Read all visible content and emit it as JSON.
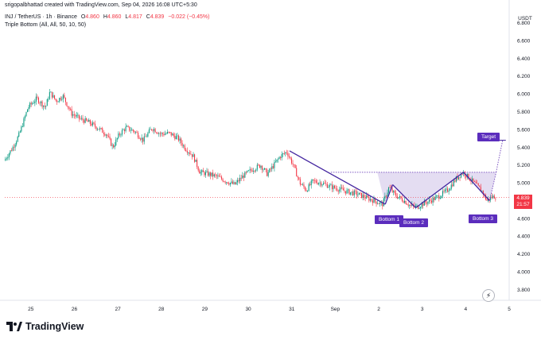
{
  "header": {
    "creator": "srigopalbhattad created with TradingView.com, Sep 04, 2026 16:08 UTC+5:30",
    "symbol": "INJ / TetherUS · 1h · Binance",
    "o_label": "O",
    "o_val": "4.860",
    "h_label": "H",
    "h_val": "4.860",
    "l_label": "L",
    "l_val": "4.817",
    "c_label": "C",
    "c_val": "4.839",
    "change": "−0.022 (−0.45%)",
    "indicator": "Triple Bottom (All, All, 50, 10, 50)"
  },
  "price_axis": {
    "currency": "USDT"
  },
  "last_price": {
    "value": "4.839",
    "countdown": "21:57"
  },
  "labels": {
    "bottom1": "Bottom 1",
    "bottom2": "Bottom 2",
    "bottom3": "Bottom 3",
    "target": "Target"
  },
  "brand": {
    "name": "TradingView"
  },
  "chart_data": {
    "type": "candlestick",
    "y_ticks": [
      "6.800",
      "6.600",
      "6.400",
      "6.200",
      "6.000",
      "5.800",
      "5.600",
      "5.400",
      "5.200",
      "5.000",
      "4.800",
      "4.600",
      "4.400",
      "4.200",
      "4.000",
      "3.800"
    ],
    "ylim": [
      3.68,
      6.95
    ],
    "x_ticks": [
      {
        "label": "25",
        "t": 0.6
      },
      {
        "label": "26",
        "t": 1.6
      },
      {
        "label": "27",
        "t": 2.6
      },
      {
        "label": "28",
        "t": 3.6
      },
      {
        "label": "29",
        "t": 4.6
      },
      {
        "label": "30",
        "t": 5.6
      },
      {
        "label": "31",
        "t": 6.6
      },
      {
        "label": "Sep",
        "t": 7.6
      },
      {
        "label": "2",
        "t": 8.6
      },
      {
        "label": "3",
        "t": 9.6
      },
      {
        "label": "4",
        "t": 10.6
      },
      {
        "label": "5",
        "t": 11.6
      }
    ],
    "xlim": [
      0,
      11.6
    ],
    "anchors": [
      [
        0.0,
        5.25
      ],
      [
        0.2,
        5.4
      ],
      [
        0.35,
        5.55
      ],
      [
        0.55,
        5.85
      ],
      [
        0.75,
        5.95
      ],
      [
        0.95,
        5.85
      ],
      [
        1.05,
        6.02
      ],
      [
        1.2,
        5.92
      ],
      [
        1.35,
        5.98
      ],
      [
        1.55,
        5.78
      ],
      [
        1.75,
        5.72
      ],
      [
        1.95,
        5.68
      ],
      [
        2.15,
        5.62
      ],
      [
        2.35,
        5.55
      ],
      [
        2.5,
        5.4
      ],
      [
        2.65,
        5.55
      ],
      [
        2.8,
        5.62
      ],
      [
        3.0,
        5.58
      ],
      [
        3.2,
        5.48
      ],
      [
        3.4,
        5.62
      ],
      [
        3.6,
        5.55
      ],
      [
        3.8,
        5.56
      ],
      [
        4.0,
        5.5
      ],
      [
        4.15,
        5.4
      ],
      [
        4.35,
        5.3
      ],
      [
        4.5,
        5.12
      ],
      [
        4.7,
        5.1
      ],
      [
        4.9,
        5.07
      ],
      [
        5.1,
        5.02
      ],
      [
        5.3,
        4.98
      ],
      [
        5.5,
        5.08
      ],
      [
        5.7,
        5.15
      ],
      [
        5.9,
        5.2
      ],
      [
        6.05,
        5.1
      ],
      [
        6.2,
        5.2
      ],
      [
        6.35,
        5.3
      ],
      [
        6.5,
        5.35
      ],
      [
        6.65,
        5.2
      ],
      [
        6.8,
        5.0
      ],
      [
        6.95,
        4.92
      ],
      [
        7.1,
        5.02
      ],
      [
        7.3,
        5.0
      ],
      [
        7.5,
        4.96
      ],
      [
        7.7,
        4.93
      ],
      [
        7.9,
        4.9
      ],
      [
        8.1,
        4.88
      ],
      [
        8.3,
        4.84
      ],
      [
        8.5,
        4.8
      ],
      [
        8.7,
        4.76
      ],
      [
        8.85,
        4.95
      ],
      [
        9.0,
        4.86
      ],
      [
        9.2,
        4.8
      ],
      [
        9.35,
        4.74
      ],
      [
        9.5,
        4.73
      ],
      [
        9.65,
        4.77
      ],
      [
        9.8,
        4.8
      ],
      [
        10.0,
        4.85
      ],
      [
        10.2,
        4.92
      ],
      [
        10.4,
        5.05
      ],
      [
        10.55,
        5.12
      ],
      [
        10.7,
        5.05
      ],
      [
        10.85,
        4.98
      ],
      [
        11.0,
        4.9
      ],
      [
        11.1,
        4.8
      ],
      [
        11.2,
        4.84
      ],
      [
        11.3,
        4.85
      ]
    ],
    "pattern_lines": [
      [
        [
          6.55,
          5.36
        ],
        [
          8.75,
          4.76
        ]
      ],
      [
        [
          8.75,
          4.76
        ],
        [
          8.92,
          4.98
        ]
      ],
      [
        [
          8.92,
          4.98
        ],
        [
          9.45,
          4.72
        ]
      ],
      [
        [
          9.45,
          4.72
        ],
        [
          10.55,
          5.12
        ]
      ],
      [
        [
          10.55,
          5.12
        ],
        [
          11.15,
          4.8
        ]
      ]
    ],
    "neckline": 5.12,
    "neckline_range": [
      7.5,
      11.3
    ],
    "target_price": 5.48,
    "target_t": 11.45
  }
}
